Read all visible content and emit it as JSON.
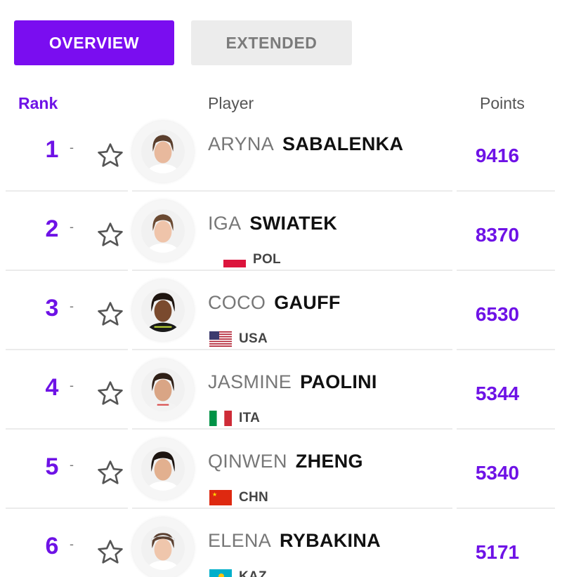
{
  "tabs": {
    "overview": "OVERVIEW",
    "extended": "EXTENDED",
    "active": "overview"
  },
  "columns": {
    "rank": "Rank",
    "player": "Player",
    "points": "Points"
  },
  "colors": {
    "accent": "#7a0df0",
    "rank": "#6e12e6"
  },
  "players": [
    {
      "rank": "1",
      "change": "-",
      "first_name": "ARYNA",
      "last_name": "SABALENKA",
      "country": "",
      "flag": "",
      "points": "9416",
      "icons": {
        "favorite": "star-outline-icon",
        "avatar": "player-photo"
      }
    },
    {
      "rank": "2",
      "change": "-",
      "first_name": "IGA",
      "last_name": "SWIATEK",
      "country": "POL",
      "flag": "poland-flag",
      "points": "8370",
      "icons": {
        "favorite": "star-outline-icon",
        "avatar": "player-photo"
      }
    },
    {
      "rank": "3",
      "change": "-",
      "first_name": "COCO",
      "last_name": "GAUFF",
      "country": "USA",
      "flag": "usa-flag",
      "points": "6530",
      "icons": {
        "favorite": "star-outline-icon",
        "avatar": "player-photo"
      }
    },
    {
      "rank": "4",
      "change": "-",
      "first_name": "JASMINE",
      "last_name": "PAOLINI",
      "country": "ITA",
      "flag": "italy-flag",
      "points": "5344",
      "icons": {
        "favorite": "star-outline-icon",
        "avatar": "player-photo"
      }
    },
    {
      "rank": "5",
      "change": "-",
      "first_name": "QINWEN",
      "last_name": "ZHENG",
      "country": "CHN",
      "flag": "china-flag",
      "points": "5340",
      "icons": {
        "favorite": "star-outline-icon",
        "avatar": "player-photo"
      }
    },
    {
      "rank": "6",
      "change": "-",
      "first_name": "ELENA",
      "last_name": "RYBAKINA",
      "country": "KAZ",
      "flag": "kazakhstan-flag",
      "points": "5171",
      "icons": {
        "favorite": "star-outline-icon",
        "avatar": "player-photo"
      }
    }
  ]
}
